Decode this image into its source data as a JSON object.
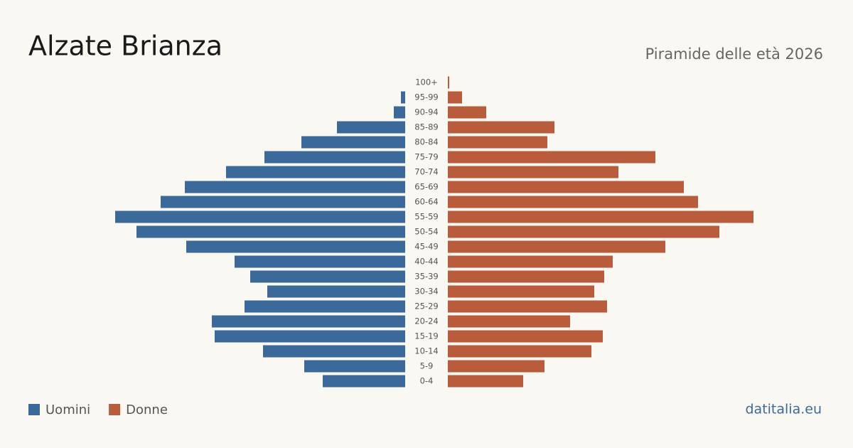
{
  "chart_data": {
    "type": "bar",
    "title": "Alzate Brianza",
    "subtitle": "Piramide delle età 2026",
    "source": "datitalia.eu",
    "categories": [
      "100+",
      "95-99",
      "90-94",
      "85-89",
      "80-84",
      "75-79",
      "70-74",
      "65-69",
      "60-64",
      "55-59",
      "50-54",
      "45-49",
      "40-44",
      "35-39",
      "30-34",
      "25-29",
      "20-24",
      "15-19",
      "10-14",
      "5-9",
      "0-4"
    ],
    "series": [
      {
        "name": "Uomini",
        "color": "#3b6a9a",
        "values": [
          0,
          3,
          8,
          48,
          73,
          99,
          126,
          155,
          172,
          204,
          189,
          154,
          120,
          109,
          97,
          113,
          136,
          134,
          100,
          71,
          58
        ]
      },
      {
        "name": "Donne",
        "color": "#b85c3b",
        "values": [
          1,
          10,
          27,
          75,
          70,
          146,
          120,
          166,
          176,
          215,
          191,
          153,
          116,
          110,
          103,
          112,
          86,
          109,
          101,
          68,
          53
        ]
      }
    ]
  }
}
